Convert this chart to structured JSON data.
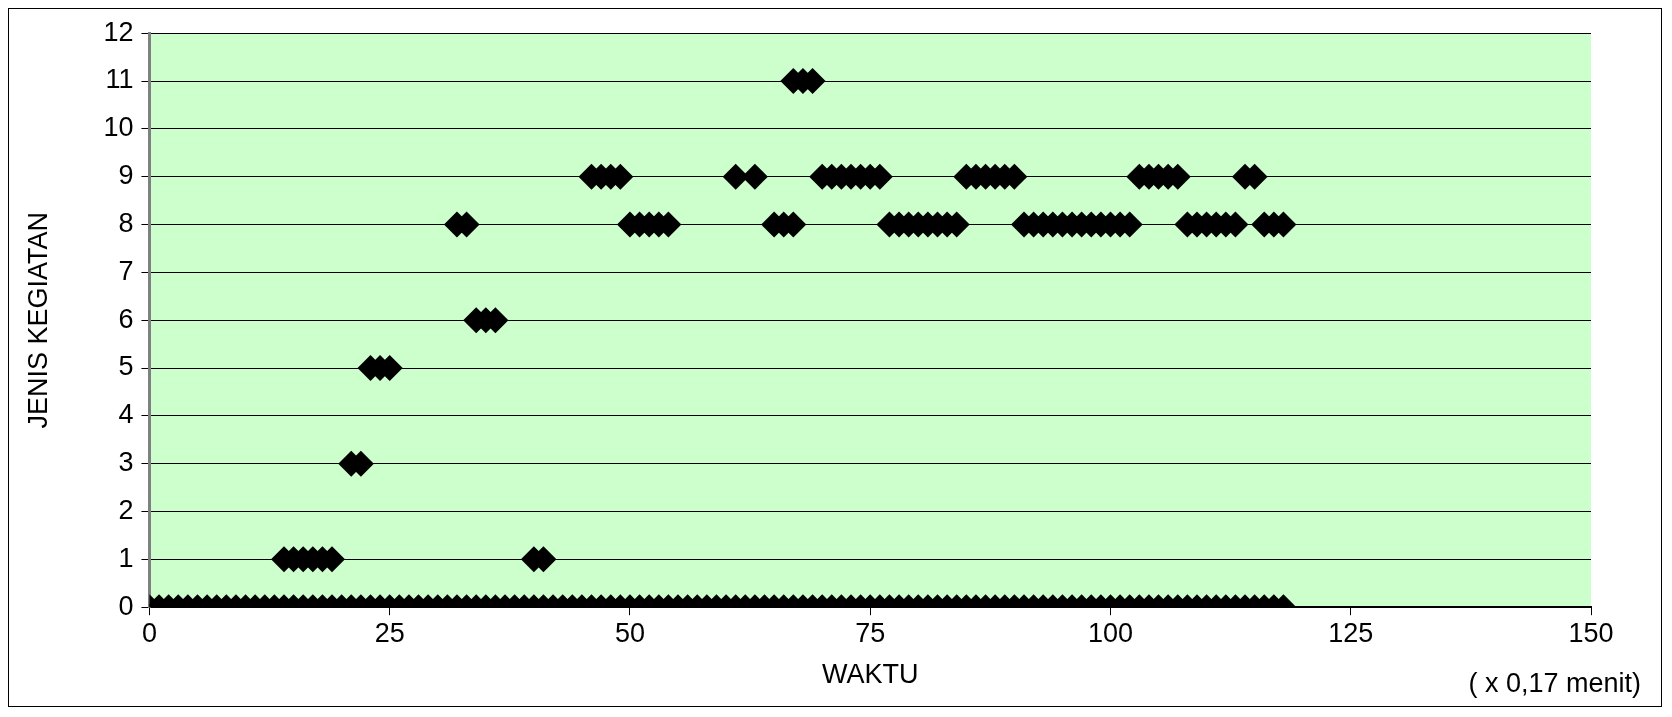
{
  "chart_data": {
    "type": "scatter",
    "xlabel": "WAKTU",
    "ylabel": "JENIS KEGIATAN",
    "annotations": [
      "( x 0,17 menit)"
    ],
    "xlim": [
      0,
      150
    ],
    "xticks": [
      0,
      25,
      50,
      75,
      100,
      125,
      150
    ],
    "ylim": [
      0,
      12
    ],
    "yticks": [
      0,
      1,
      2,
      3,
      4,
      5,
      6,
      7,
      8,
      9,
      10,
      11,
      12
    ],
    "grid": "y",
    "legend": false,
    "marker": "diamond",
    "series": [
      {
        "color": "#000000",
        "x": [
          0,
          1,
          2,
          3,
          4,
          5,
          6,
          7,
          8,
          9,
          10,
          11,
          12,
          13,
          14,
          15,
          16,
          17,
          18,
          19,
          20,
          21,
          22,
          23,
          24,
          25,
          26,
          27,
          28,
          29,
          30,
          31,
          32,
          33,
          34,
          35,
          36,
          37,
          38,
          39,
          40,
          41,
          42,
          43,
          44,
          45,
          46,
          47,
          48,
          49,
          50,
          51,
          52,
          53,
          54,
          55,
          56,
          57,
          58,
          59,
          60,
          61,
          62,
          63,
          64,
          65,
          66,
          67,
          68,
          69,
          70,
          71,
          72,
          73,
          74,
          75,
          76,
          77,
          78,
          79,
          80,
          81,
          82,
          83,
          84,
          85,
          86,
          87,
          88,
          89,
          90,
          91,
          92,
          93,
          94,
          95,
          96,
          97,
          98,
          99,
          100,
          101,
          102,
          103,
          104,
          105,
          106,
          107,
          108,
          109,
          110,
          111,
          112,
          113,
          114,
          115,
          116,
          117,
          118
        ],
        "values": [
          0,
          0,
          0,
          0,
          0,
          0,
          0,
          0,
          0,
          0,
          0,
          0,
          0,
          0,
          0,
          0,
          0,
          0,
          0,
          0,
          0,
          0,
          0,
          0,
          0,
          0,
          0,
          0,
          0,
          0,
          0,
          0,
          0,
          0,
          0,
          0,
          0,
          0,
          0,
          0,
          0,
          0,
          0,
          0,
          0,
          0,
          0,
          0,
          0,
          0,
          0,
          0,
          0,
          0,
          0,
          0,
          0,
          0,
          0,
          0,
          0,
          0,
          0,
          0,
          0,
          0,
          0,
          0,
          0,
          0,
          0,
          0,
          0,
          0,
          0,
          0,
          0,
          0,
          0,
          0,
          0,
          0,
          0,
          0,
          0,
          0,
          0,
          0,
          0,
          0,
          0,
          0,
          0,
          0,
          0,
          0,
          0,
          0,
          0,
          0,
          0,
          0,
          0,
          0,
          0,
          0,
          0,
          0,
          0,
          0,
          0,
          0,
          0,
          0,
          0,
          0,
          0,
          0,
          0
        ]
      },
      {
        "color": "#000000",
        "x": [
          14,
          15,
          16,
          17,
          18,
          19,
          21,
          22,
          23,
          24,
          25,
          32,
          33,
          34,
          35,
          36,
          40,
          41,
          46,
          47,
          48,
          49,
          50,
          51,
          52,
          53,
          54,
          61,
          63,
          65,
          66,
          67,
          67,
          68,
          69,
          70,
          71,
          72,
          73,
          74,
          75,
          76,
          77,
          78,
          79,
          80,
          81,
          82,
          83,
          84,
          85,
          86,
          87,
          88,
          89,
          90,
          91,
          92,
          93,
          94,
          95,
          96,
          97,
          98,
          99,
          100,
          101,
          102,
          103,
          104,
          105,
          106,
          107,
          108,
          109,
          110,
          111,
          112,
          113,
          114,
          115,
          116,
          117,
          118
        ],
        "values": [
          1,
          1,
          1,
          1,
          1,
          1,
          3,
          3,
          5,
          5,
          5,
          8,
          8,
          6,
          6,
          6,
          1,
          1,
          9,
          9,
          9,
          9,
          8,
          8,
          8,
          8,
          8,
          9,
          9,
          8,
          8,
          8,
          11,
          11,
          11,
          9,
          9,
          9,
          9,
          9,
          9,
          9,
          8,
          8,
          8,
          8,
          8,
          8,
          8,
          8,
          9,
          9,
          9,
          9,
          9,
          9,
          8,
          8,
          8,
          8,
          8,
          8,
          8,
          8,
          8,
          8,
          8,
          8,
          9,
          9,
          9,
          9,
          9,
          8,
          8,
          8,
          8,
          8,
          8,
          9,
          9,
          8,
          8,
          8
        ]
      }
    ]
  }
}
